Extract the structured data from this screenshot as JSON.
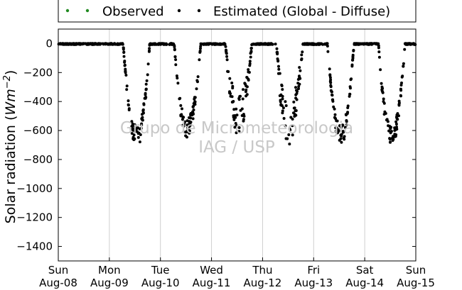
{
  "chart_data": {
    "type": "scatter",
    "title": "",
    "xlabel": "",
    "ylabel": "Solar radiation (",
    "ylabel_unit": "Wm",
    "ylabel_exp": "−2",
    "ylabel_close": ")",
    "xlim": [
      0,
      7
    ],
    "ylim": [
      -1500,
      100
    ],
    "grid": true,
    "legend_placement": "top-center",
    "x_ticks": [
      {
        "x": 0,
        "day": "Sun",
        "date": "Aug-08"
      },
      {
        "x": 1,
        "day": "Mon",
        "date": "Aug-09"
      },
      {
        "x": 2,
        "day": "Tue",
        "date": "Aug-10"
      },
      {
        "x": 3,
        "day": "Wed",
        "date": "Aug-11"
      },
      {
        "x": 4,
        "day": "Thu",
        "date": "Aug-12"
      },
      {
        "x": 5,
        "day": "Fri",
        "date": "Aug-13"
      },
      {
        "x": 6,
        "day": "Sat",
        "date": "Aug-14"
      },
      {
        "x": 7,
        "day": "Sun",
        "date": "Aug-15"
      }
    ],
    "y_ticks": [
      0,
      -200,
      -400,
      -600,
      -800,
      -1000,
      -1200,
      -1400
    ],
    "y_tick_labels": [
      "0",
      "−200",
      "−400",
      "−600",
      "−800",
      "−1000",
      "−1200",
      "−1400"
    ],
    "watermark": [
      "Grupo de Micrometeorologia",
      "IAG / USP"
    ],
    "series": [
      {
        "name": "Observed",
        "color": "#228B22",
        "marker": "dot",
        "points": []
      },
      {
        "name": "Estimated (Global - Diffuse)",
        "color": "#000000",
        "marker": "dot",
        "daily_minimum": [
          {
            "x": 1.54,
            "y": -720
          },
          {
            "x": 2.52,
            "y": -650
          },
          {
            "x": 3.52,
            "y": -630
          },
          {
            "x": 4.5,
            "y": -700
          },
          {
            "x": 5.53,
            "y": -710
          },
          {
            "x": 6.52,
            "y": -720
          }
        ],
        "daylight_window": [
          0.27,
          0.79
        ]
      }
    ]
  }
}
